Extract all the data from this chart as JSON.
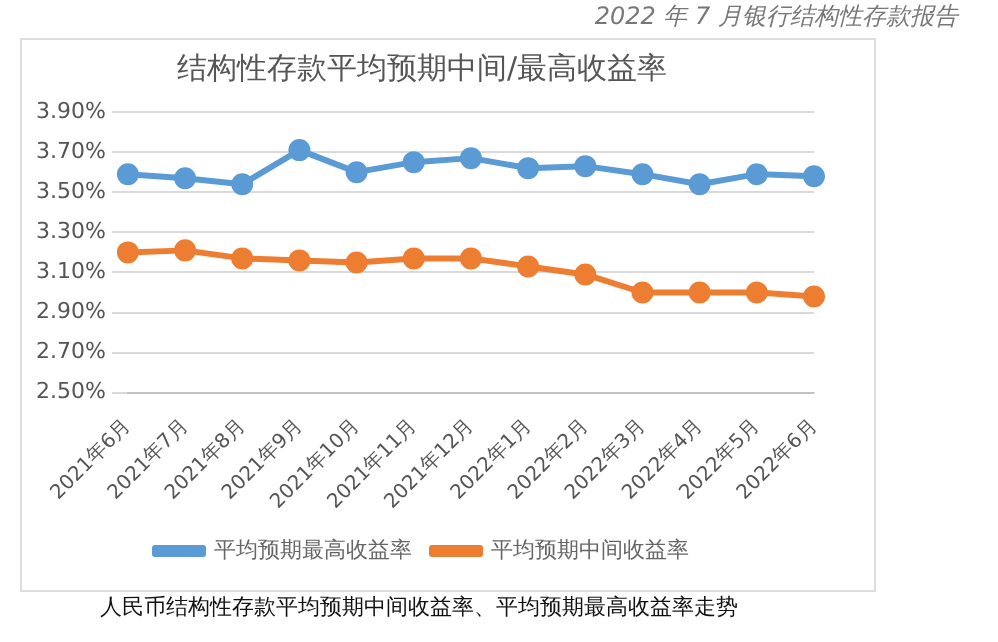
{
  "chart_data": {
    "type": "line",
    "title": "结构性存款平均预期中间/最高收益率",
    "annotations": [
      "2022 年 7 月银行结构性存款报告",
      "人民币结构性存款平均预期中间收益率、平均预期最高收益率走势"
    ],
    "categories": [
      "2021年6月",
      "2021年7月",
      "2021年8月",
      "2021年9月",
      "2021年10月",
      "2021年11月",
      "2021年12月",
      "2022年1月",
      "2022年2月",
      "2022年3月",
      "2022年4月",
      "2022年5月",
      "2022年6月"
    ],
    "series": [
      {
        "name": "平均预期最高收益率",
        "color": "#5b9bd5",
        "values": [
          3.59,
          3.57,
          3.54,
          3.71,
          3.6,
          3.65,
          3.67,
          3.62,
          3.63,
          3.59,
          3.54,
          3.59,
          3.58
        ]
      },
      {
        "name": "平均预期中间收益率",
        "color": "#ed7d31",
        "values": [
          3.2,
          3.21,
          3.17,
          3.16,
          3.15,
          3.17,
          3.17,
          3.13,
          3.09,
          3.0,
          3.0,
          3.0,
          2.98
        ]
      }
    ],
    "ylim": [
      2.5,
      3.9
    ],
    "yticks": [
      {
        "value": 2.5,
        "label": "2.50%"
      },
      {
        "value": 2.7,
        "label": "2.70%"
      },
      {
        "value": 2.9,
        "label": "2.90%"
      },
      {
        "value": 3.1,
        "label": "3.10%"
      },
      {
        "value": 3.3,
        "label": "3.30%"
      },
      {
        "value": 3.5,
        "label": "3.50%"
      },
      {
        "value": 3.7,
        "label": "3.70%"
      },
      {
        "value": 3.9,
        "label": "3.90%"
      }
    ],
    "grid": "y",
    "legend": "bottom",
    "marker": "circle",
    "line_style": "solid"
  }
}
